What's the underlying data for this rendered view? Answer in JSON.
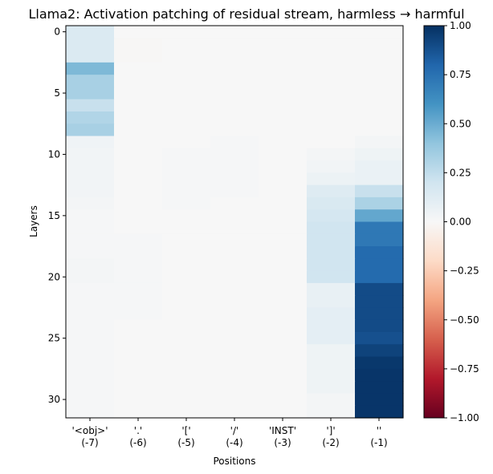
{
  "chart_data": {
    "type": "heatmap",
    "title": "Llama2: Activation patching of residual stream, harmless → harmful",
    "xlabel": "Positions",
    "ylabel": "Layers",
    "x_tick_labels": [
      [
        "'<obj>'",
        "(-7)"
      ],
      [
        "'.'",
        "(-6)"
      ],
      [
        "'['",
        "(-5)"
      ],
      [
        "'/'",
        "(-4)"
      ],
      [
        "'INST'",
        "(-3)"
      ],
      [
        "']'",
        "(-2)"
      ],
      [
        "''",
        "(-1)"
      ]
    ],
    "y_ticks": [
      0,
      5,
      10,
      15,
      20,
      25,
      30
    ],
    "colorbar_ticks": [
      1.0,
      0.75,
      0.5,
      0.25,
      0.0,
      -0.25,
      -0.5,
      -0.75,
      -1.0
    ],
    "colorbar_tick_labels": [
      "1.00",
      "0.75",
      "0.50",
      "0.25",
      "0.00",
      "−0.25",
      "−0.50",
      "−0.75",
      "−1.00"
    ],
    "colormap": "RdBu",
    "vmin": -1.0,
    "vmax": 1.0,
    "num_layers": 32,
    "num_positions": 7,
    "values": [
      [
        0.15,
        0.0,
        0.0,
        0.0,
        0.0,
        0.0,
        0.0
      ],
      [
        0.15,
        -0.01,
        0.0,
        0.0,
        0.0,
        0.0,
        0.0
      ],
      [
        0.15,
        -0.01,
        0.0,
        0.0,
        0.0,
        0.0,
        0.0
      ],
      [
        0.45,
        0.0,
        0.0,
        0.0,
        0.0,
        0.0,
        0.0
      ],
      [
        0.33,
        0.0,
        0.0,
        0.0,
        0.0,
        0.0,
        0.0
      ],
      [
        0.33,
        0.0,
        0.0,
        0.0,
        0.0,
        0.0,
        0.0
      ],
      [
        0.23,
        0.0,
        0.0,
        0.0,
        0.0,
        0.0,
        0.0
      ],
      [
        0.3,
        0.0,
        0.0,
        0.0,
        0.0,
        0.0,
        0.0
      ],
      [
        0.33,
        0.0,
        0.0,
        0.0,
        0.0,
        0.0,
        0.0
      ],
      [
        0.04,
        0.0,
        0.0,
        0.01,
        0.0,
        0.0,
        0.02
      ],
      [
        0.03,
        0.0,
        0.01,
        0.01,
        0.0,
        0.02,
        0.05
      ],
      [
        0.03,
        0.0,
        0.01,
        0.01,
        0.0,
        0.03,
        0.07
      ],
      [
        0.03,
        0.0,
        0.01,
        0.01,
        0.0,
        0.06,
        0.07
      ],
      [
        0.03,
        0.0,
        0.01,
        0.01,
        0.0,
        0.13,
        0.23
      ],
      [
        0.02,
        0.0,
        0.01,
        0.0,
        0.0,
        0.16,
        0.32
      ],
      [
        0.01,
        0.0,
        0.0,
        0.0,
        0.0,
        0.18,
        0.52
      ],
      [
        0.01,
        0.0,
        0.0,
        0.0,
        0.0,
        0.2,
        0.72
      ],
      [
        0.01,
        0.01,
        0.0,
        0.0,
        0.0,
        0.2,
        0.72
      ],
      [
        0.01,
        0.01,
        0.0,
        0.0,
        0.0,
        0.2,
        0.78
      ],
      [
        0.02,
        0.01,
        0.0,
        0.0,
        0.0,
        0.2,
        0.78
      ],
      [
        0.02,
        0.01,
        0.0,
        0.0,
        0.0,
        0.2,
        0.78
      ],
      [
        0.01,
        0.01,
        0.0,
        0.0,
        0.0,
        0.08,
        0.9
      ],
      [
        0.01,
        0.01,
        0.0,
        0.0,
        0.0,
        0.08,
        0.9
      ],
      [
        0.01,
        0.01,
        0.0,
        0.0,
        0.0,
        0.1,
        0.9
      ],
      [
        0.01,
        0.0,
        0.0,
        0.0,
        0.0,
        0.1,
        0.9
      ],
      [
        0.01,
        0.0,
        0.0,
        0.0,
        0.0,
        0.1,
        0.88
      ],
      [
        0.01,
        0.0,
        0.0,
        0.0,
        0.0,
        0.05,
        0.93
      ],
      [
        0.01,
        0.0,
        0.0,
        0.0,
        0.0,
        0.05,
        0.97
      ],
      [
        0.01,
        0.0,
        0.0,
        0.0,
        0.0,
        0.05,
        0.98
      ],
      [
        0.01,
        0.0,
        0.0,
        0.0,
        0.0,
        0.05,
        0.98
      ],
      [
        0.01,
        0.0,
        0.0,
        0.0,
        0.0,
        0.02,
        0.98
      ],
      [
        0.01,
        0.0,
        0.0,
        0.0,
        0.0,
        0.02,
        0.98
      ]
    ]
  }
}
